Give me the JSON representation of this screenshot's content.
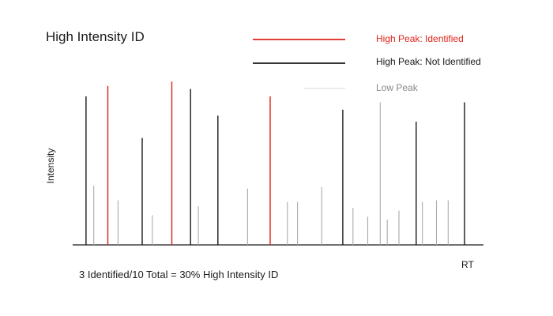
{
  "chart_data": {
    "type": "bar",
    "title": "High Intensity ID",
    "xlabel": "RT",
    "ylabel": "Intensity",
    "caption": "3 Identified/10 Total = 30% High Intensity ID",
    "legend_position": "top-right",
    "grid": false,
    "ylim": [
      0,
      100
    ],
    "series": [
      {
        "name": "High Peak: Identified",
        "color": "#e0231b"
      },
      {
        "name": "High Peak: Not Identified",
        "color": "#1a1a1a"
      },
      {
        "name": "Low Peak",
        "color": "#aaaaaa"
      }
    ],
    "peaks": [
      {
        "rt": 1.2,
        "intensity": 100,
        "series": 1
      },
      {
        "rt": 2.2,
        "intensity": 40,
        "series": 2
      },
      {
        "rt": 4.0,
        "intensity": 107,
        "series": 0
      },
      {
        "rt": 5.3,
        "intensity": 30,
        "series": 2
      },
      {
        "rt": 8.4,
        "intensity": 72,
        "series": 1
      },
      {
        "rt": 9.7,
        "intensity": 20,
        "series": 2
      },
      {
        "rt": 12.2,
        "intensity": 110,
        "series": 0
      },
      {
        "rt": 14.6,
        "intensity": 105,
        "series": 1
      },
      {
        "rt": 15.6,
        "intensity": 26,
        "series": 2
      },
      {
        "rt": 18.1,
        "intensity": 87,
        "series": 1
      },
      {
        "rt": 21.9,
        "intensity": 38,
        "series": 2
      },
      {
        "rt": 24.8,
        "intensity": 100,
        "series": 0
      },
      {
        "rt": 27.0,
        "intensity": 29,
        "series": 2
      },
      {
        "rt": 28.3,
        "intensity": 29,
        "series": 2
      },
      {
        "rt": 31.4,
        "intensity": 39,
        "series": 2
      },
      {
        "rt": 34.1,
        "intensity": 91,
        "series": 1
      },
      {
        "rt": 35.4,
        "intensity": 25,
        "series": 2
      },
      {
        "rt": 37.3,
        "intensity": 19,
        "series": 2
      },
      {
        "rt": 38.9,
        "intensity": 96,
        "series": 2
      },
      {
        "rt": 39.8,
        "intensity": 17,
        "series": 2
      },
      {
        "rt": 41.3,
        "intensity": 23,
        "series": 2
      },
      {
        "rt": 43.5,
        "intensity": 83,
        "series": 1
      },
      {
        "rt": 44.3,
        "intensity": 29,
        "series": 2
      },
      {
        "rt": 46.1,
        "intensity": 30,
        "series": 2
      },
      {
        "rt": 47.6,
        "intensity": 30,
        "series": 2
      },
      {
        "rt": 49.7,
        "intensity": 96,
        "series": 1
      }
    ]
  }
}
